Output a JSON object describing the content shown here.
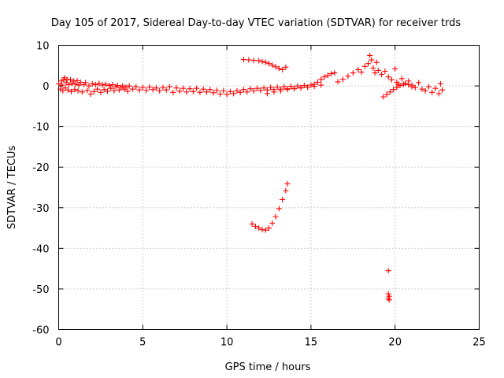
{
  "chart_data": {
    "type": "scatter",
    "title": "Day 105 of 2017, Sidereal Day-to-day VTEC variation (SDTVAR) for receiver trds",
    "xlabel": "GPS time / hours",
    "ylabel": "SDTVAR / TECUs",
    "xlim": [
      0,
      25
    ],
    "ylim": [
      -60,
      10
    ],
    "xticks": [
      0,
      5,
      10,
      15,
      20,
      25
    ],
    "yticks": [
      -60,
      -50,
      -40,
      -30,
      -20,
      -10,
      0,
      10
    ],
    "grid": true,
    "marker": "+",
    "series": [
      {
        "name": "SDTVAR",
        "color": "#ff0000",
        "points": [
          [
            0.0,
            0.5
          ],
          [
            0.1,
            -0.8
          ],
          [
            0.15,
            1.2
          ],
          [
            0.2,
            0.2
          ],
          [
            0.25,
            -1.2
          ],
          [
            0.3,
            1.5
          ],
          [
            0.35,
            2.0
          ],
          [
            0.4,
            -0.5
          ],
          [
            0.45,
            0.8
          ],
          [
            0.5,
            1.6
          ],
          [
            0.55,
            -1.0
          ],
          [
            0.6,
            0.3
          ],
          [
            0.7,
            1.5
          ],
          [
            0.75,
            -1.4
          ],
          [
            0.8,
            0.6
          ],
          [
            0.9,
            1.2
          ],
          [
            0.95,
            -0.9
          ],
          [
            1.0,
            0.4
          ],
          [
            1.1,
            1.3
          ],
          [
            1.15,
            -1.2
          ],
          [
            1.2,
            0.2
          ],
          [
            1.3,
            0.9
          ],
          [
            1.4,
            -1.5
          ],
          [
            1.5,
            0.3
          ],
          [
            1.6,
            0.8
          ],
          [
            1.7,
            -1.1
          ],
          [
            1.8,
            0.0
          ],
          [
            1.9,
            -2.0
          ],
          [
            2.0,
            0.5
          ],
          [
            2.1,
            -1.4
          ],
          [
            2.2,
            0.3
          ],
          [
            2.3,
            -0.8
          ],
          [
            2.4,
            0.6
          ],
          [
            2.5,
            -1.6
          ],
          [
            2.6,
            0.2
          ],
          [
            2.7,
            -0.9
          ],
          [
            2.8,
            0.4
          ],
          [
            2.9,
            -1.3
          ],
          [
            3.0,
            0.1
          ],
          [
            3.1,
            -0.6
          ],
          [
            3.2,
            0.3
          ],
          [
            3.3,
            -1.2
          ],
          [
            3.4,
            -0.2
          ],
          [
            3.5,
            0.1
          ],
          [
            3.6,
            -1.0
          ],
          [
            3.7,
            -0.4
          ],
          [
            3.8,
            0.0
          ],
          [
            3.9,
            -0.8
          ],
          [
            4.0,
            -0.3
          ],
          [
            4.1,
            -1.3
          ],
          [
            4.2,
            0.0
          ],
          [
            4.4,
            -0.8
          ],
          [
            4.6,
            -0.2
          ],
          [
            4.8,
            -1.0
          ],
          [
            5.0,
            -0.4
          ],
          [
            5.2,
            -1.1
          ],
          [
            5.4,
            -0.3
          ],
          [
            5.6,
            -0.9
          ],
          [
            5.8,
            -0.5
          ],
          [
            6.0,
            -1.2
          ],
          [
            6.2,
            -0.4
          ],
          [
            6.4,
            -1.0
          ],
          [
            6.6,
            -0.2
          ],
          [
            6.8,
            -1.6
          ],
          [
            7.0,
            -0.5
          ],
          [
            7.2,
            -1.3
          ],
          [
            7.4,
            -0.6
          ],
          [
            7.6,
            -1.5
          ],
          [
            7.8,
            -0.7
          ],
          [
            8.0,
            -1.4
          ],
          [
            8.2,
            -0.6
          ],
          [
            8.4,
            -1.6
          ],
          [
            8.6,
            -0.8
          ],
          [
            8.8,
            -1.5
          ],
          [
            9.0,
            -0.9
          ],
          [
            9.2,
            -1.7
          ],
          [
            9.4,
            -1.1
          ],
          [
            9.6,
            -2.0
          ],
          [
            9.8,
            -1.2
          ],
          [
            10.0,
            -2.1
          ],
          [
            10.2,
            -1.4
          ],
          [
            10.4,
            -1.9
          ],
          [
            10.6,
            -1.2
          ],
          [
            10.8,
            -1.6
          ],
          [
            11.0,
            -0.9
          ],
          [
            11.2,
            -1.5
          ],
          [
            11.4,
            -0.7
          ],
          [
            11.6,
            -1.2
          ],
          [
            11.8,
            -0.6
          ],
          [
            12.0,
            -1.1
          ],
          [
            12.2,
            -0.5
          ],
          [
            12.4,
            -1.0
          ],
          [
            12.6,
            -0.4
          ],
          [
            12.8,
            -0.9
          ],
          [
            13.0,
            -0.3
          ],
          [
            13.2,
            -0.8
          ],
          [
            13.4,
            -0.2
          ],
          [
            13.6,
            -0.7
          ],
          [
            13.8,
            -0.1
          ],
          [
            14.0,
            -0.6
          ],
          [
            14.2,
            0.0
          ],
          [
            14.4,
            -0.4
          ],
          [
            14.6,
            0.1
          ],
          [
            14.8,
            -0.3
          ],
          [
            15.0,
            0.2
          ],
          [
            15.2,
            0.4
          ],
          [
            15.4,
            0.9
          ],
          [
            15.6,
            1.6
          ],
          [
            15.8,
            2.2
          ],
          [
            16.0,
            2.6
          ],
          [
            16.2,
            3.0
          ],
          [
            16.4,
            3.2
          ],
          [
            12.4,
            -1.9
          ],
          [
            12.8,
            -1.5
          ],
          [
            13.2,
            -1.2
          ],
          [
            13.6,
            -0.9
          ],
          [
            14.0,
            -0.7
          ],
          [
            14.4,
            -0.5
          ],
          [
            14.8,
            -0.3
          ],
          [
            15.2,
            -0.1
          ],
          [
            15.6,
            0.2
          ],
          [
            11.0,
            6.5
          ],
          [
            11.3,
            6.4
          ],
          [
            11.6,
            6.3
          ],
          [
            11.9,
            6.2
          ],
          [
            12.1,
            6.0
          ],
          [
            12.3,
            5.8
          ],
          [
            12.5,
            5.5
          ],
          [
            12.7,
            5.1
          ],
          [
            12.9,
            4.7
          ],
          [
            13.1,
            4.3
          ],
          [
            13.3,
            4.0
          ],
          [
            13.5,
            4.6
          ],
          [
            16.6,
            1.0
          ],
          [
            16.9,
            1.6
          ],
          [
            17.2,
            2.4
          ],
          [
            17.5,
            3.2
          ],
          [
            17.8,
            4.0
          ],
          [
            18.0,
            3.4
          ],
          [
            18.2,
            4.8
          ],
          [
            18.4,
            5.5
          ],
          [
            18.5,
            7.5
          ],
          [
            18.6,
            6.4
          ],
          [
            18.7,
            4.4
          ],
          [
            18.8,
            3.2
          ],
          [
            18.9,
            5.8
          ],
          [
            19.0,
            3.8
          ],
          [
            19.2,
            2.8
          ],
          [
            19.4,
            3.6
          ],
          [
            19.6,
            2.2
          ],
          [
            19.8,
            1.5
          ],
          [
            20.0,
            4.2
          ],
          [
            20.1,
            0.9
          ],
          [
            20.2,
            0.4
          ],
          [
            20.4,
            1.8
          ],
          [
            20.6,
            0.6
          ],
          [
            20.8,
            1.2
          ],
          [
            21.0,
            0.2
          ],
          [
            21.2,
            -0.4
          ],
          [
            21.4,
            0.8
          ],
          [
            21.6,
            -0.8
          ],
          [
            21.8,
            -1.2
          ],
          [
            22.0,
            -0.2
          ],
          [
            22.2,
            -1.6
          ],
          [
            22.4,
            -0.6
          ],
          [
            22.6,
            -1.9
          ],
          [
            22.7,
            0.5
          ],
          [
            22.8,
            -1.0
          ],
          [
            19.3,
            -2.7
          ],
          [
            19.5,
            -2.1
          ],
          [
            19.7,
            -1.5
          ],
          [
            19.9,
            -0.9
          ],
          [
            20.1,
            -0.4
          ],
          [
            20.3,
            0.1
          ],
          [
            20.5,
            0.4
          ],
          [
            20.8,
            0.3
          ],
          [
            21.0,
            -0.2
          ],
          [
            11.5,
            -34.0
          ],
          [
            11.7,
            -34.6
          ],
          [
            11.9,
            -35.0
          ],
          [
            12.1,
            -35.4
          ],
          [
            12.3,
            -35.5
          ],
          [
            12.5,
            -35.0
          ],
          [
            12.7,
            -33.8
          ],
          [
            12.9,
            -32.2
          ],
          [
            13.1,
            -30.2
          ],
          [
            13.3,
            -28.0
          ],
          [
            13.5,
            -25.8
          ],
          [
            13.6,
            -24.1
          ],
          [
            19.6,
            -45.5
          ],
          [
            19.6,
            -51.2
          ],
          [
            19.65,
            -51.8
          ],
          [
            19.6,
            -52.3
          ],
          [
            19.65,
            -52.7
          ]
        ]
      }
    ]
  }
}
